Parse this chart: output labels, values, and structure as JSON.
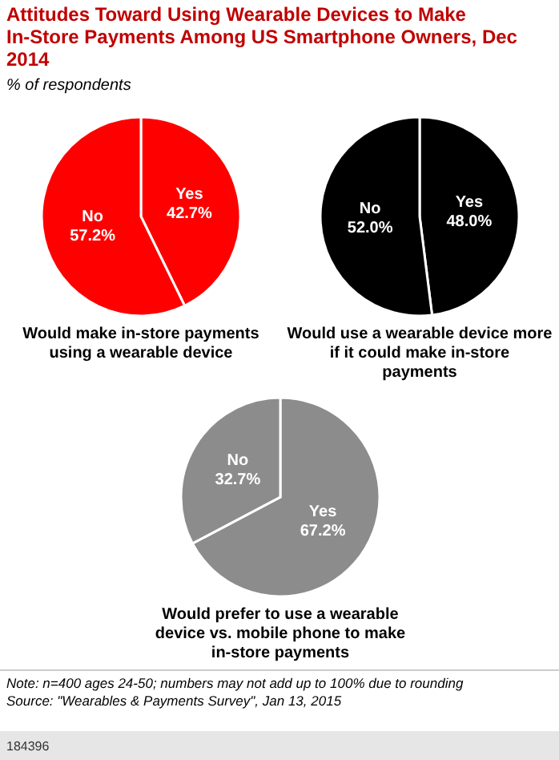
{
  "chart_data": [
    {
      "type": "pie",
      "title": "Attitudes Toward Using Wearable Devices to Make In-Store Payments Among US Smartphone Owners, Dec 2014",
      "subtitle": "% of respondents",
      "xlabel": "Would make in-store payments using a wearable device",
      "categories": [
        "Yes",
        "No"
      ],
      "values": [
        42.7,
        57.2
      ],
      "value_labels": [
        "42.7%",
        "57.2%"
      ],
      "colors": [
        "#ff0000",
        "#ff0000"
      ]
    },
    {
      "type": "pie",
      "xlabel": "Would use a wearable device more if it could make in-store payments",
      "categories": [
        "Yes",
        "No"
      ],
      "values": [
        48.0,
        52.0
      ],
      "value_labels": [
        "48.0%",
        "52.0%"
      ],
      "colors": [
        "#000000",
        "#000000"
      ]
    },
    {
      "type": "pie",
      "xlabel": "Would prefer to use a wearable device vs. mobile phone to make in-store payments",
      "categories": [
        "Yes",
        "No"
      ],
      "values": [
        67.2,
        32.7
      ],
      "value_labels": [
        "67.2%",
        "32.7%"
      ],
      "colors": [
        "#8c8c8c",
        "#8c8c8c"
      ],
      "annotations": [
        "Note: n=400 ages 24-50; numbers may not add up to 100% due to rounding",
        "Source: \"Wearables & Payments Survey\", Jan 13, 2015",
        "184396"
      ]
    }
  ]
}
